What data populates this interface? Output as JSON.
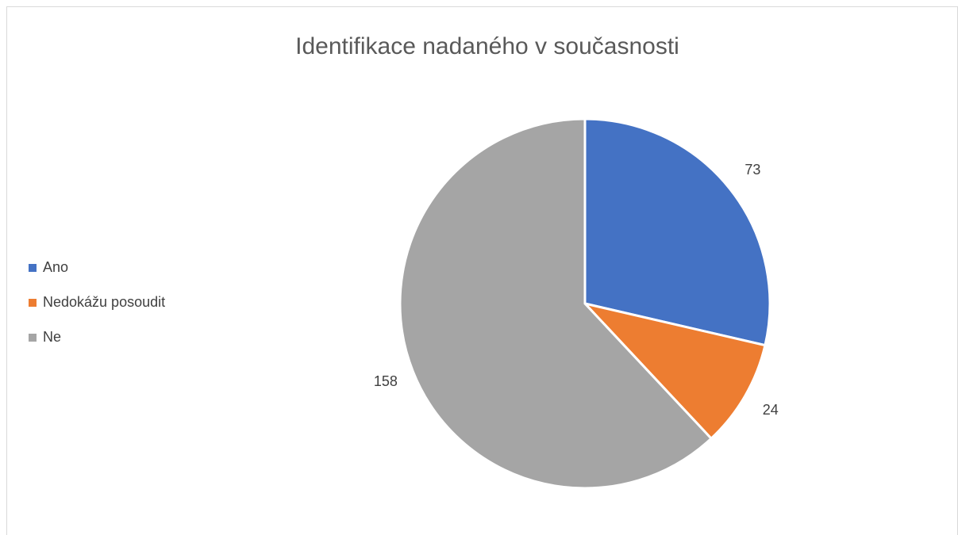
{
  "chart_data": {
    "type": "pie",
    "title": "Identifikace nadaného v současnosti",
    "categories": [
      "Ano",
      "Nedokážu posoudit",
      "Ne"
    ],
    "values": [
      73,
      24,
      158
    ],
    "colors": [
      "#4472c4",
      "#ed7d31",
      "#a5a5a5"
    ],
    "legend": "left"
  }
}
